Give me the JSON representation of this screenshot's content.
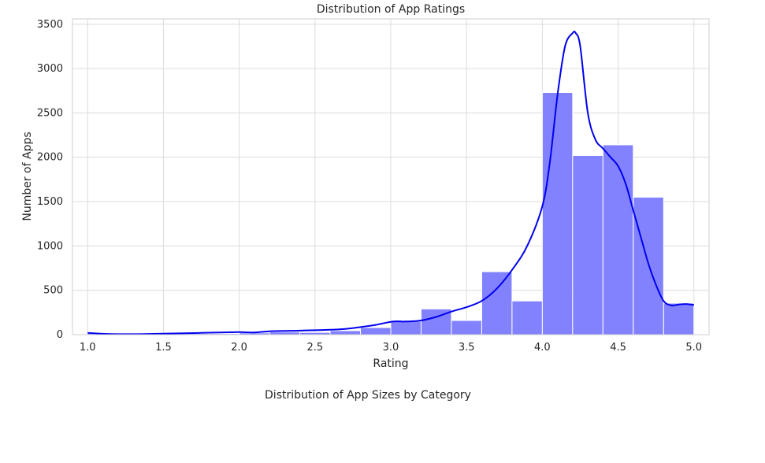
{
  "chart_data": {
    "type": "bar",
    "title": "Distribution of App Ratings",
    "xlabel": "Rating",
    "ylabel": "Number of Apps",
    "xlim": [
      0.9,
      5.1
    ],
    "ylim": [
      0,
      3560
    ],
    "xticks": [
      "1.0",
      "1.5",
      "2.0",
      "2.5",
      "3.0",
      "3.5",
      "4.0",
      "4.5",
      "5.0"
    ],
    "yticks": [
      "0",
      "500",
      "1000",
      "1500",
      "2000",
      "2500",
      "3000",
      "3500"
    ],
    "grid": true,
    "bins": [
      {
        "x0": 1.0,
        "x1": 1.2,
        "count": 16
      },
      {
        "x0": 1.2,
        "x1": 1.4,
        "count": 3
      },
      {
        "x0": 1.4,
        "x1": 1.6,
        "count": 7
      },
      {
        "x0": 1.6,
        "x1": 1.8,
        "count": 12
      },
      {
        "x0": 1.8,
        "x1": 2.0,
        "count": 12
      },
      {
        "x0": 2.0,
        "x1": 2.2,
        "count": 20
      },
      {
        "x0": 2.2,
        "x1": 2.4,
        "count": 30
      },
      {
        "x0": 2.4,
        "x1": 2.6,
        "count": 25
      },
      {
        "x0": 2.6,
        "x1": 2.8,
        "count": 45
      },
      {
        "x0": 2.8,
        "x1": 3.0,
        "count": 80
      },
      {
        "x0": 3.0,
        "x1": 3.2,
        "count": 150
      },
      {
        "x0": 3.2,
        "x1": 3.4,
        "count": 290
      },
      {
        "x0": 3.4,
        "x1": 3.6,
        "count": 160
      },
      {
        "x0": 3.6,
        "x1": 3.8,
        "count": 710
      },
      {
        "x0": 3.8,
        "x1": 4.0,
        "count": 380
      },
      {
        "x0": 4.0,
        "x1": 4.2,
        "count": 2730
      },
      {
        "x0": 4.2,
        "x1": 4.4,
        "count": 2020
      },
      {
        "x0": 4.4,
        "x1": 4.6,
        "count": 2140
      },
      {
        "x0": 4.6,
        "x1": 4.8,
        "count": 1550
      },
      {
        "x0": 4.8,
        "x1": 5.0,
        "count": 355
      }
    ],
    "kde": {
      "x": [
        1.0,
        1.1,
        1.2,
        1.4,
        1.6,
        1.8,
        2.0,
        2.1,
        2.2,
        2.4,
        2.6,
        2.7,
        2.8,
        2.9,
        3.0,
        3.05,
        3.1,
        3.2,
        3.3,
        3.4,
        3.5,
        3.6,
        3.7,
        3.8,
        3.9,
        4.0,
        4.05,
        4.1,
        4.15,
        4.2,
        4.22,
        4.25,
        4.3,
        4.35,
        4.4,
        4.45,
        4.5,
        4.55,
        4.6,
        4.65,
        4.7,
        4.75,
        4.8,
        4.85,
        4.9,
        4.95,
        5.0
      ],
      "y": [
        20,
        10,
        5,
        8,
        14,
        22,
        28,
        25,
        38,
        45,
        55,
        65,
        85,
        110,
        145,
        150,
        148,
        160,
        200,
        260,
        310,
        380,
        520,
        730,
        1000,
        1450,
        1950,
        2700,
        3250,
        3400,
        3400,
        3250,
        2500,
        2200,
        2100,
        2000,
        1900,
        1700,
        1400,
        1100,
        800,
        560,
        380,
        330,
        340,
        345,
        335
      ]
    }
  },
  "footer": {
    "next_chart_title": "Distribution of App Sizes by Category"
  }
}
